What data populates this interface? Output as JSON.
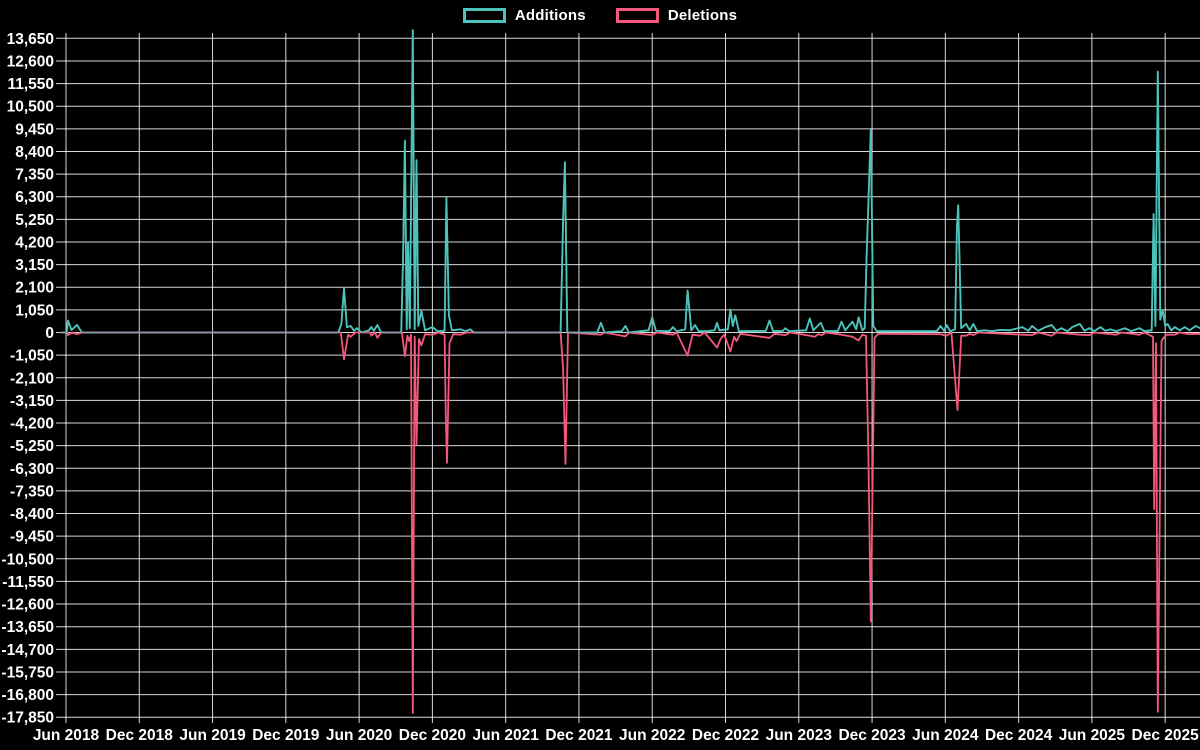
{
  "legend": [
    {
      "label": "Additions",
      "color": "#4cc3bb"
    },
    {
      "label": "Deletions",
      "color": "#f4587c"
    }
  ],
  "colors": {
    "background": "#000000",
    "grid": "#ffffff",
    "axis_text": "#ffffff",
    "additions": "#4cc3bb",
    "deletions": "#f4587c",
    "baseline_blend": "#90999f"
  },
  "chart_data": {
    "type": "line",
    "title": "",
    "xlabel": "",
    "ylabel": "",
    "grid": true,
    "legend_position": "top-center",
    "x_unit": "months since Jun 2018",
    "x_tick_positions": [
      0,
      6,
      12,
      18,
      24,
      30,
      36,
      42,
      48,
      54,
      60,
      66,
      72,
      78,
      84,
      90
    ],
    "x_tick_labels": [
      "Jun 2018",
      "Dec 2018",
      "Jun 2019",
      "Dec 2019",
      "Jun 2020",
      "Dec 2020",
      "Jun 2021",
      "Dec 2021",
      "Jun 2022",
      "Dec 2022",
      "Jun 2023",
      "Dec 2023",
      "Jun 2024",
      "Dec 2024",
      "Jun 2025",
      "Dec 2025"
    ],
    "xlim": [
      -0.33,
      92.9
    ],
    "ylim": [
      -17850,
      13650
    ],
    "y_tick_step": 1050,
    "series": [
      {
        "name": "Additions",
        "color": "#4cc3bb",
        "points": [
          [
            -0.33,
            0
          ],
          [
            0.05,
            0
          ],
          [
            0.16,
            550
          ],
          [
            0.45,
            120
          ],
          [
            0.9,
            350
          ],
          [
            1.3,
            0
          ],
          [
            22.3,
            0
          ],
          [
            22.55,
            400
          ],
          [
            22.76,
            2050
          ],
          [
            23.0,
            250
          ],
          [
            23.3,
            300
          ],
          [
            23.6,
            80
          ],
          [
            23.8,
            200
          ],
          [
            24.2,
            0
          ],
          [
            24.8,
            100
          ],
          [
            25.0,
            250
          ],
          [
            25.2,
            80
          ],
          [
            25.5,
            350
          ],
          [
            25.8,
            0
          ],
          [
            27.45,
            0
          ],
          [
            27.6,
            3500
          ],
          [
            27.75,
            8900
          ],
          [
            27.9,
            150
          ],
          [
            28.0,
            4200
          ],
          [
            28.15,
            200
          ],
          [
            28.4,
            14025
          ],
          [
            28.55,
            150
          ],
          [
            28.7,
            8000
          ],
          [
            28.85,
            300
          ],
          [
            29.1,
            1000
          ],
          [
            29.4,
            100
          ],
          [
            30.0,
            250
          ],
          [
            30.4,
            60
          ],
          [
            31.0,
            80
          ],
          [
            31.15,
            6250
          ],
          [
            31.35,
            800
          ],
          [
            31.6,
            100
          ],
          [
            32.3,
            150
          ],
          [
            32.7,
            60
          ],
          [
            33.1,
            150
          ],
          [
            33.4,
            0
          ],
          [
            40.5,
            0
          ],
          [
            40.7,
            5200
          ],
          [
            40.85,
            7900
          ],
          [
            41.05,
            0
          ],
          [
            43.5,
            0
          ],
          [
            43.8,
            450
          ],
          [
            44.1,
            0
          ],
          [
            45.5,
            60
          ],
          [
            45.8,
            300
          ],
          [
            46.1,
            0
          ],
          [
            47.7,
            100
          ],
          [
            48.0,
            700
          ],
          [
            48.3,
            80
          ],
          [
            49.4,
            60
          ],
          [
            49.7,
            250
          ],
          [
            50.0,
            60
          ],
          [
            50.7,
            150
          ],
          [
            50.9,
            1950
          ],
          [
            51.2,
            100
          ],
          [
            51.5,
            350
          ],
          [
            51.8,
            60
          ],
          [
            52.5,
            60
          ],
          [
            53.1,
            100
          ],
          [
            53.3,
            450
          ],
          [
            53.5,
            100
          ],
          [
            54.2,
            150
          ],
          [
            54.4,
            1070
          ],
          [
            54.6,
            300
          ],
          [
            54.8,
            800
          ],
          [
            55.1,
            60
          ],
          [
            57.3,
            80
          ],
          [
            57.6,
            550
          ],
          [
            57.9,
            60
          ],
          [
            58.7,
            80
          ],
          [
            58.9,
            200
          ],
          [
            59.2,
            60
          ],
          [
            60.6,
            100
          ],
          [
            60.9,
            650
          ],
          [
            61.2,
            100
          ],
          [
            61.8,
            450
          ],
          [
            62.1,
            60
          ],
          [
            63.2,
            80
          ],
          [
            63.5,
            500
          ],
          [
            63.8,
            100
          ],
          [
            64.4,
            500
          ],
          [
            64.7,
            150
          ],
          [
            64.9,
            700
          ],
          [
            65.2,
            100
          ],
          [
            65.4,
            200
          ],
          [
            65.55,
            3500
          ],
          [
            65.9,
            9400
          ],
          [
            66.1,
            300
          ],
          [
            66.4,
            60
          ],
          [
            71.3,
            60
          ],
          [
            71.6,
            300
          ],
          [
            71.9,
            80
          ],
          [
            72.1,
            350
          ],
          [
            72.4,
            60
          ],
          [
            72.8,
            150
          ],
          [
            72.95,
            4800
          ],
          [
            73.05,
            5900
          ],
          [
            73.3,
            200
          ],
          [
            73.7,
            400
          ],
          [
            74.0,
            100
          ],
          [
            74.3,
            400
          ],
          [
            74.6,
            60
          ],
          [
            75.2,
            100
          ],
          [
            75.8,
            60
          ],
          [
            76.5,
            120
          ],
          [
            77.3,
            100
          ],
          [
            78.3,
            250
          ],
          [
            78.8,
            80
          ],
          [
            79.1,
            300
          ],
          [
            79.6,
            80
          ],
          [
            80.2,
            250
          ],
          [
            80.7,
            350
          ],
          [
            81.1,
            80
          ],
          [
            81.5,
            200
          ],
          [
            82.0,
            60
          ],
          [
            82.4,
            250
          ],
          [
            83.0,
            400
          ],
          [
            83.4,
            80
          ],
          [
            83.8,
            200
          ],
          [
            84.2,
            60
          ],
          [
            84.7,
            250
          ],
          [
            85.1,
            80
          ],
          [
            85.5,
            150
          ],
          [
            86.0,
            60
          ],
          [
            86.7,
            200
          ],
          [
            87.2,
            60
          ],
          [
            87.9,
            200
          ],
          [
            88.3,
            60
          ],
          [
            88.9,
            100
          ],
          [
            89.05,
            5500
          ],
          [
            89.2,
            300
          ],
          [
            89.4,
            12100
          ],
          [
            89.6,
            600
          ],
          [
            89.8,
            1050
          ],
          [
            90.0,
            300
          ],
          [
            90.2,
            400
          ],
          [
            90.5,
            100
          ],
          [
            90.8,
            250
          ],
          [
            91.2,
            100
          ],
          [
            91.6,
            250
          ],
          [
            92.0,
            100
          ],
          [
            92.5,
            300
          ],
          [
            92.87,
            200
          ]
        ]
      },
      {
        "name": "Deletions",
        "color": "#f4587c",
        "points": [
          [
            -0.33,
            0
          ],
          [
            0.1,
            0
          ],
          [
            0.16,
            -120
          ],
          [
            0.5,
            0
          ],
          [
            0.9,
            -80
          ],
          [
            1.3,
            0
          ],
          [
            22.5,
            0
          ],
          [
            22.76,
            -1250
          ],
          [
            23.1,
            -100
          ],
          [
            23.3,
            -200
          ],
          [
            23.7,
            0
          ],
          [
            24.9,
            0
          ],
          [
            25.0,
            -150
          ],
          [
            25.3,
            0
          ],
          [
            25.5,
            -250
          ],
          [
            25.8,
            0
          ],
          [
            27.5,
            0
          ],
          [
            27.75,
            -1100
          ],
          [
            27.95,
            -150
          ],
          [
            28.1,
            -400
          ],
          [
            28.25,
            -100
          ],
          [
            28.4,
            -17655
          ],
          [
            28.55,
            -200
          ],
          [
            28.7,
            -5200
          ],
          [
            28.9,
            -300
          ],
          [
            29.1,
            -600
          ],
          [
            29.4,
            -80
          ],
          [
            30.0,
            -100
          ],
          [
            30.5,
            0
          ],
          [
            31.0,
            -100
          ],
          [
            31.1,
            -3900
          ],
          [
            31.2,
            -6050
          ],
          [
            31.4,
            -500
          ],
          [
            31.7,
            -80
          ],
          [
            32.3,
            -100
          ],
          [
            32.8,
            0
          ],
          [
            40.5,
            0
          ],
          [
            40.7,
            -1700
          ],
          [
            40.9,
            -6100
          ],
          [
            41.1,
            0
          ],
          [
            43.8,
            -100
          ],
          [
            44.1,
            0
          ],
          [
            45.8,
            -180
          ],
          [
            46.1,
            0
          ],
          [
            48.0,
            -120
          ],
          [
            48.4,
            0
          ],
          [
            49.7,
            -100
          ],
          [
            50.0,
            0
          ],
          [
            50.9,
            -1070
          ],
          [
            51.3,
            -100
          ],
          [
            51.9,
            -150
          ],
          [
            52.3,
            0
          ],
          [
            53.3,
            -700
          ],
          [
            53.6,
            -300
          ],
          [
            53.9,
            -100
          ],
          [
            54.4,
            -880
          ],
          [
            54.7,
            -200
          ],
          [
            54.9,
            -400
          ],
          [
            55.2,
            -60
          ],
          [
            57.6,
            -250
          ],
          [
            58.0,
            -60
          ],
          [
            58.9,
            -120
          ],
          [
            59.3,
            0
          ],
          [
            60.9,
            -150
          ],
          [
            61.3,
            -200
          ],
          [
            61.6,
            -80
          ],
          [
            61.9,
            -120
          ],
          [
            62.2,
            0
          ],
          [
            63.5,
            -100
          ],
          [
            64.4,
            -200
          ],
          [
            64.9,
            -370
          ],
          [
            65.2,
            -100
          ],
          [
            65.5,
            -150
          ],
          [
            65.7,
            -5700
          ],
          [
            65.9,
            -13400
          ],
          [
            66.2,
            -250
          ],
          [
            66.5,
            -60
          ],
          [
            71.6,
            -80
          ],
          [
            72.1,
            -150
          ],
          [
            72.5,
            0
          ],
          [
            73.0,
            -3600
          ],
          [
            73.3,
            -150
          ],
          [
            73.7,
            -150
          ],
          [
            74.0,
            -60
          ],
          [
            74.3,
            -120
          ],
          [
            74.7,
            0
          ],
          [
            78.3,
            -100
          ],
          [
            79.1,
            -120
          ],
          [
            79.6,
            0
          ],
          [
            80.7,
            -150
          ],
          [
            81.1,
            0
          ],
          [
            83.0,
            -100
          ],
          [
            83.8,
            -120
          ],
          [
            84.2,
            0
          ],
          [
            86.0,
            -100
          ],
          [
            86.4,
            0
          ],
          [
            87.9,
            -100
          ],
          [
            88.3,
            0
          ],
          [
            89.0,
            -200
          ],
          [
            89.1,
            -8200
          ],
          [
            89.25,
            -500
          ],
          [
            89.4,
            -17600
          ],
          [
            89.7,
            -400
          ],
          [
            89.8,
            -300
          ],
          [
            90.1,
            -100
          ],
          [
            90.8,
            -100
          ],
          [
            91.2,
            0
          ],
          [
            92.0,
            -80
          ],
          [
            92.5,
            -60
          ],
          [
            92.87,
            -80
          ]
        ]
      }
    ]
  }
}
